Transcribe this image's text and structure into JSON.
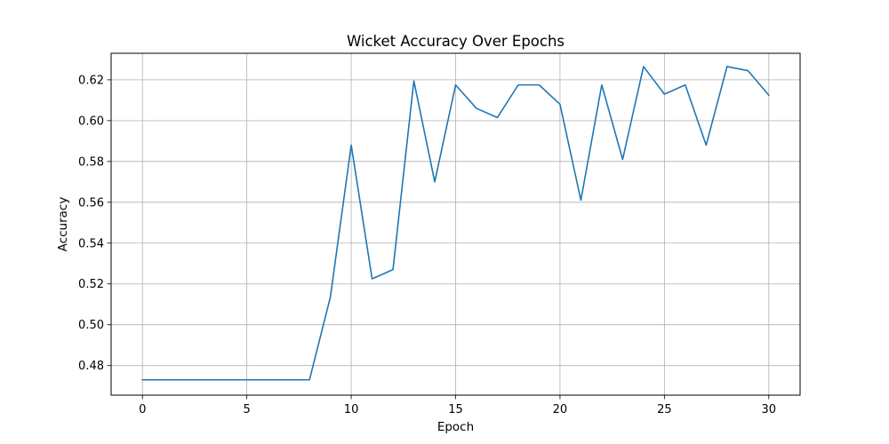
{
  "chart_data": {
    "type": "line",
    "title": "Wicket Accuracy Over Epochs",
    "xlabel": "Epoch",
    "ylabel": "Accuracy",
    "xlim": [
      -1.5,
      31.5
    ],
    "ylim": [
      0.4655,
      0.633
    ],
    "xticks": [
      0,
      5,
      10,
      15,
      20,
      25,
      30
    ],
    "yticks": [
      0.48,
      0.5,
      0.52,
      0.54,
      0.56,
      0.58,
      0.6,
      0.62
    ],
    "ytick_labels": [
      "0.48",
      "0.50",
      "0.52",
      "0.54",
      "0.56",
      "0.58",
      "0.60",
      "0.62"
    ],
    "grid": true,
    "series": [
      {
        "color": "#1f77b4",
        "x": [
          0,
          1,
          2,
          3,
          4,
          5,
          6,
          7,
          8,
          9,
          10,
          11,
          12,
          13,
          14,
          15,
          16,
          17,
          18,
          19,
          20,
          21,
          22,
          23,
          24,
          25,
          26,
          27,
          28,
          29,
          30
        ],
        "values": [
          0.473,
          0.473,
          0.473,
          0.473,
          0.473,
          0.473,
          0.473,
          0.473,
          0.473,
          0.5135,
          0.588,
          0.5225,
          0.527,
          0.6195,
          0.57,
          0.6175,
          0.606,
          0.6015,
          0.6175,
          0.6175,
          0.608,
          0.561,
          0.6175,
          0.581,
          0.6265,
          0.613,
          0.6175,
          0.588,
          0.6265,
          0.6245,
          0.6125
        ]
      }
    ]
  }
}
